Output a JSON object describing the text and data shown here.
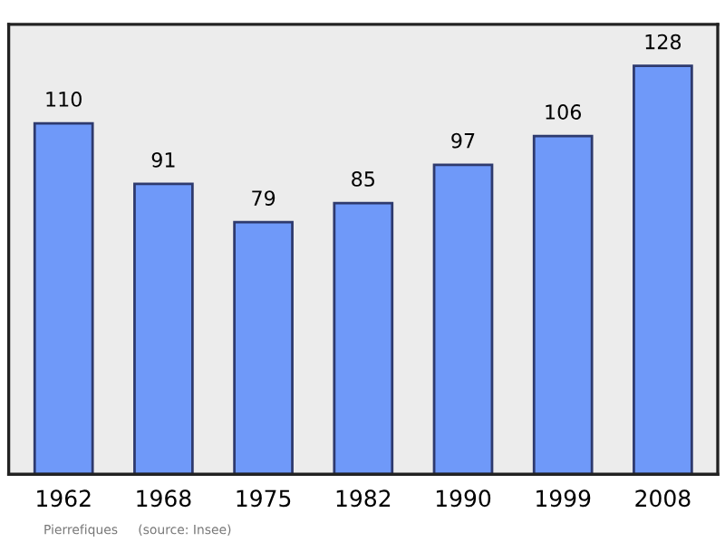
{
  "chart_data": {
    "type": "bar",
    "categories": [
      "1962",
      "1968",
      "1975",
      "1982",
      "1990",
      "1999",
      "2008"
    ],
    "values": [
      110,
      91,
      79,
      85,
      97,
      106,
      128
    ],
    "color": "#6f99f9",
    "ylim": [
      0,
      141
    ],
    "tick_labels": "x",
    "data_labels": true,
    "grid": false,
    "legend": false,
    "annotations": [
      "Pierrefiques",
      "(source: Insee)"
    ]
  }
}
